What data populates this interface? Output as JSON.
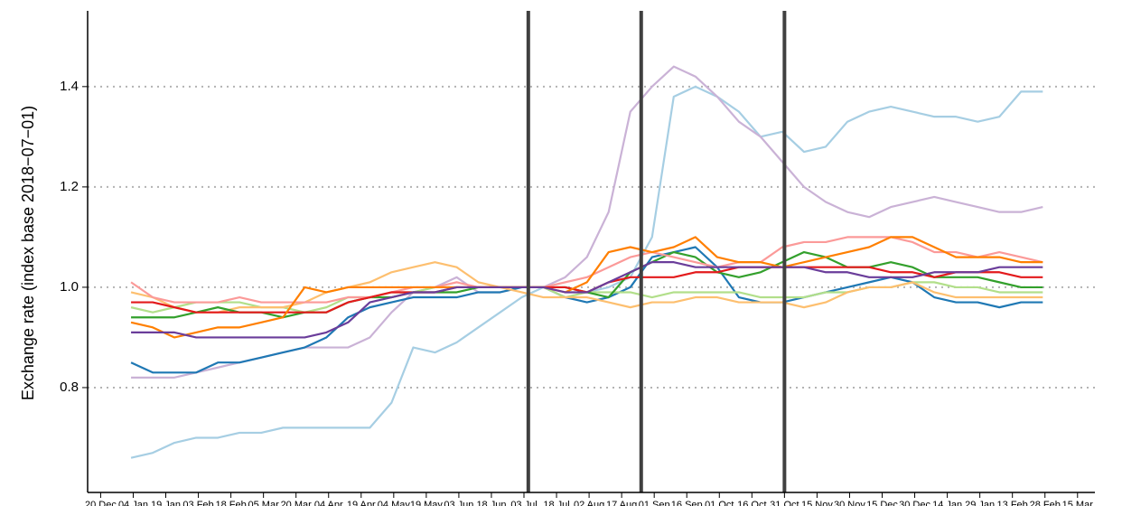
{
  "chart_data": {
    "type": "line",
    "y_label": "Exchange rate (index base 2018−07−01)",
    "xlim": [
      -6,
      458
    ],
    "xticks": [
      {
        "value": 0,
        "label": "20 Dec"
      },
      {
        "value": 15,
        "label": "04 Jan"
      },
      {
        "value": 30,
        "label": "19 Jan"
      },
      {
        "value": 45,
        "label": "03 Feb"
      },
      {
        "value": 60,
        "label": "18 Feb"
      },
      {
        "value": 75,
        "label": "05 Mar"
      },
      {
        "value": 90,
        "label": "20 Mar"
      },
      {
        "value": 105,
        "label": "04 Apr"
      },
      {
        "value": 120,
        "label": "19 Apr"
      },
      {
        "value": 135,
        "label": "04 May"
      },
      {
        "value": 150,
        "label": "19 May"
      },
      {
        "value": 165,
        "label": "03 Jun"
      },
      {
        "value": 180,
        "label": "18 Jun"
      },
      {
        "value": 195,
        "label": "03 Jul"
      },
      {
        "value": 210,
        "label": "18 Jul"
      },
      {
        "value": 225,
        "label": "02 Aug"
      },
      {
        "value": 240,
        "label": "17 Aug"
      },
      {
        "value": 255,
        "label": "01 Sep"
      },
      {
        "value": 270,
        "label": "16 Sep"
      },
      {
        "value": 285,
        "label": "01 Oct"
      },
      {
        "value": 300,
        "label": "16 Oct"
      },
      {
        "value": 315,
        "label": "31 Oct"
      },
      {
        "value": 330,
        "label": "15 Nov"
      },
      {
        "value": 345,
        "label": "30 Nov"
      },
      {
        "value": 360,
        "label": "15 Dec"
      },
      {
        "value": 375,
        "label": "30 Dec"
      },
      {
        "value": 390,
        "label": "14 Jan"
      },
      {
        "value": 405,
        "label": "29 Jan"
      },
      {
        "value": 420,
        "label": "13 Feb"
      },
      {
        "value": 435,
        "label": "28 Feb"
      },
      {
        "value": 450,
        "label": "15 Mar"
      }
    ],
    "ylim": [
      0.591,
      1.551
    ],
    "yticks": [
      0.8,
      {
        "value": 1,
        "label": "1.0"
      },
      1.2,
      1.4
    ],
    "grid": true,
    "vertical_lines": [
      197,
      249,
      315
    ],
    "x": [
      14,
      24,
      34,
      44,
      54,
      64,
      74,
      84,
      94,
      104,
      114,
      124,
      134,
      144,
      154,
      164,
      174,
      184,
      194,
      204,
      214,
      224,
      234,
      244,
      254,
      264,
      274,
      284,
      294,
      304,
      314,
      324,
      334,
      344,
      354,
      364,
      374,
      384,
      394,
      404,
      414,
      424,
      434
    ],
    "series": [
      {
        "color": "#a6cee3",
        "values": [
          0.66,
          0.67,
          0.69,
          0.7,
          0.7,
          0.71,
          0.71,
          0.72,
          0.72,
          0.72,
          0.72,
          0.72,
          0.77,
          0.88,
          0.87,
          0.89,
          0.92,
          0.95,
          0.98,
          1.0,
          1.0,
          0.99,
          1.0,
          1.02,
          1.1,
          1.38,
          1.4,
          1.38,
          1.35,
          1.3,
          1.31,
          1.27,
          1.28,
          1.33,
          1.35,
          1.36,
          1.35,
          1.34,
          1.34,
          1.33,
          1.34,
          1.39,
          1.39
        ]
      },
      {
        "color": "#cab2d6",
        "values": [
          0.82,
          0.82,
          0.82,
          0.83,
          0.84,
          0.85,
          0.86,
          0.87,
          0.88,
          0.88,
          0.88,
          0.9,
          0.95,
          0.99,
          1.0,
          1.02,
          0.99,
          0.99,
          1.0,
          1.0,
          1.02,
          1.06,
          1.15,
          1.35,
          1.4,
          1.44,
          1.42,
          1.38,
          1.33,
          1.3,
          1.25,
          1.2,
          1.17,
          1.15,
          1.14,
          1.16,
          1.17,
          1.18,
          1.17,
          1.16,
          1.15,
          1.15,
          1.16
        ]
      },
      {
        "color": "#1f78b4",
        "values": [
          0.85,
          0.83,
          0.83,
          0.83,
          0.85,
          0.85,
          0.86,
          0.87,
          0.88,
          0.9,
          0.94,
          0.96,
          0.97,
          0.98,
          0.98,
          0.98,
          0.99,
          0.99,
          1.0,
          1.0,
          0.98,
          0.97,
          0.98,
          1.0,
          1.06,
          1.07,
          1.08,
          1.04,
          0.98,
          0.97,
          0.97,
          0.98,
          0.99,
          1.0,
          1.01,
          1.02,
          1.01,
          0.98,
          0.97,
          0.97,
          0.96,
          0.97,
          0.97
        ]
      },
      {
        "color": "#b2df8a",
        "values": [
          0.96,
          0.95,
          0.96,
          0.97,
          0.97,
          0.97,
          0.96,
          0.96,
          0.95,
          0.96,
          0.98,
          0.98,
          0.99,
          0.99,
          1.0,
          1.0,
          1.0,
          1.0,
          1.0,
          1.0,
          0.98,
          0.99,
          0.99,
          0.99,
          0.98,
          0.99,
          0.99,
          0.99,
          0.99,
          0.98,
          0.98,
          0.98,
          0.99,
          0.99,
          1.0,
          1.0,
          1.01,
          1.01,
          1.0,
          1.0,
          0.99,
          0.99,
          0.99
        ]
      },
      {
        "color": "#fdbf6f",
        "values": [
          0.99,
          0.98,
          0.96,
          0.95,
          0.95,
          0.96,
          0.96,
          0.96,
          0.97,
          0.99,
          1.0,
          1.01,
          1.03,
          1.04,
          1.05,
          1.04,
          1.01,
          1.0,
          0.99,
          0.98,
          0.98,
          0.98,
          0.97,
          0.96,
          0.97,
          0.97,
          0.98,
          0.98,
          0.97,
          0.97,
          0.97,
          0.96,
          0.97,
          0.99,
          1.0,
          1.0,
          1.01,
          0.99,
          0.98,
          0.98,
          0.98,
          0.98,
          0.98
        ]
      },
      {
        "color": "#33a02c",
        "values": [
          0.94,
          0.94,
          0.94,
          0.95,
          0.96,
          0.95,
          0.95,
          0.94,
          0.95,
          0.95,
          0.97,
          0.98,
          0.98,
          0.99,
          0.99,
          0.99,
          1.0,
          1.0,
          1.0,
          1.0,
          1.0,
          0.99,
          0.98,
          1.03,
          1.05,
          1.07,
          1.06,
          1.03,
          1.02,
          1.03,
          1.05,
          1.07,
          1.06,
          1.04,
          1.04,
          1.05,
          1.04,
          1.02,
          1.02,
          1.02,
          1.01,
          1.0,
          1.0
        ]
      },
      {
        "color": "#fb9a99",
        "values": [
          1.01,
          0.98,
          0.97,
          0.97,
          0.97,
          0.98,
          0.97,
          0.97,
          0.97,
          0.97,
          0.98,
          0.98,
          0.99,
          1.0,
          1.0,
          1.01,
          1.0,
          1.0,
          1.0,
          1.0,
          1.01,
          1.02,
          1.04,
          1.06,
          1.07,
          1.06,
          1.05,
          1.04,
          1.05,
          1.05,
          1.08,
          1.09,
          1.09,
          1.1,
          1.1,
          1.1,
          1.09,
          1.07,
          1.07,
          1.06,
          1.07,
          1.06,
          1.05
        ]
      },
      {
        "color": "#e31a1c",
        "values": [
          0.97,
          0.97,
          0.96,
          0.95,
          0.95,
          0.95,
          0.95,
          0.95,
          0.95,
          0.95,
          0.97,
          0.98,
          0.99,
          0.99,
          0.99,
          1.0,
          1.0,
          1.0,
          1.0,
          1.0,
          1.0,
          0.99,
          1.01,
          1.02,
          1.02,
          1.02,
          1.03,
          1.03,
          1.04,
          1.04,
          1.04,
          1.04,
          1.04,
          1.04,
          1.04,
          1.03,
          1.03,
          1.02,
          1.03,
          1.03,
          1.03,
          1.02,
          1.02
        ]
      },
      {
        "color": "#ff7f00",
        "values": [
          0.93,
          0.92,
          0.9,
          0.91,
          0.92,
          0.92,
          0.93,
          0.94,
          1.0,
          0.99,
          1.0,
          1.0,
          1.0,
          1.0,
          1.0,
          1.0,
          1.0,
          1.0,
          1.0,
          1.0,
          0.99,
          1.01,
          1.07,
          1.08,
          1.07,
          1.08,
          1.1,
          1.06,
          1.05,
          1.05,
          1.04,
          1.05,
          1.06,
          1.07,
          1.08,
          1.1,
          1.1,
          1.08,
          1.06,
          1.06,
          1.06,
          1.05,
          1.05
        ]
      },
      {
        "color": "#6a3d9a",
        "values": [
          0.91,
          0.91,
          0.91,
          0.9,
          0.9,
          0.9,
          0.9,
          0.9,
          0.9,
          0.91,
          0.93,
          0.97,
          0.98,
          0.99,
          0.99,
          1.0,
          1.0,
          1.0,
          1.0,
          1.0,
          0.99,
          0.99,
          1.01,
          1.03,
          1.05,
          1.05,
          1.04,
          1.04,
          1.04,
          1.04,
          1.04,
          1.04,
          1.03,
          1.03,
          1.02,
          1.02,
          1.02,
          1.03,
          1.03,
          1.03,
          1.04,
          1.04,
          1.04
        ]
      }
    ]
  }
}
